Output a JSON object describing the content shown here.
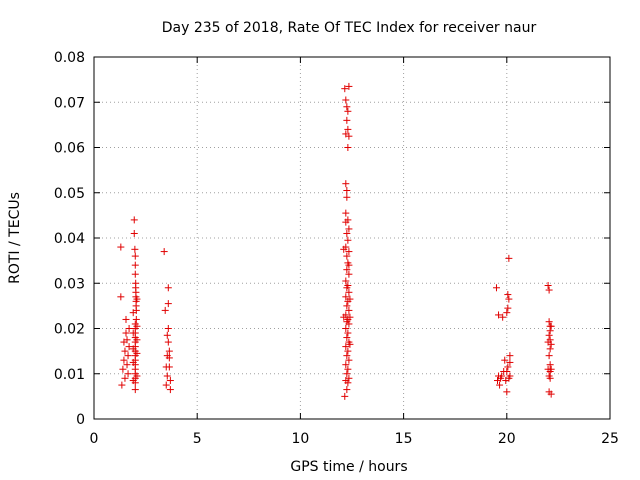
{
  "chart_data": {
    "type": "scatter",
    "title": "Day 235 of 2018, Rate Of TEC Index for receiver naur",
    "xlabel": "GPS time / hours",
    "ylabel": "ROTI / TECUs",
    "xlim": [
      0,
      25
    ],
    "ylim": [
      0,
      0.08
    ],
    "xticks": [
      "0",
      "5",
      "10",
      "15",
      "20",
      "25"
    ],
    "yticks": [
      "0",
      "0.01",
      "0.02",
      "0.03",
      "0.04",
      "0.05",
      "0.06",
      "0.07",
      "0.08"
    ],
    "grid": true,
    "marker": "plus",
    "color": "#e00000",
    "series": [
      {
        "points": [
          [
            1.3,
            0.038
          ],
          [
            1.3,
            0.027
          ],
          [
            1.35,
            0.0075
          ],
          [
            1.4,
            0.011
          ],
          [
            1.45,
            0.013
          ],
          [
            1.45,
            0.017
          ],
          [
            1.5,
            0.009
          ],
          [
            1.5,
            0.015
          ],
          [
            1.55,
            0.019
          ],
          [
            1.55,
            0.022
          ],
          [
            1.6,
            0.012
          ],
          [
            1.6,
            0.0175
          ],
          [
            1.65,
            0.01
          ],
          [
            1.65,
            0.014
          ],
          [
            1.7,
            0.016
          ],
          [
            1.7,
            0.02
          ],
          [
            1.95,
            0.044
          ],
          [
            1.95,
            0.041
          ],
          [
            1.98,
            0.0375
          ],
          [
            2.0,
            0.036
          ],
          [
            2.0,
            0.034
          ],
          [
            2.0,
            0.032
          ],
          [
            2.02,
            0.03
          ],
          [
            2.02,
            0.029
          ],
          [
            2.03,
            0.028
          ],
          [
            2.03,
            0.027
          ],
          [
            2.04,
            0.026
          ],
          [
            2.04,
            0.025
          ],
          [
            2.05,
            0.024
          ],
          [
            2.05,
            0.022
          ],
          [
            2.0,
            0.021
          ],
          [
            2.0,
            0.02
          ],
          [
            2.0,
            0.019
          ],
          [
            2.0,
            0.018
          ],
          [
            2.0,
            0.017
          ],
          [
            2.0,
            0.016
          ],
          [
            2.0,
            0.015
          ],
          [
            2.0,
            0.014
          ],
          [
            2.0,
            0.013
          ],
          [
            2.0,
            0.012
          ],
          [
            2.0,
            0.011
          ],
          [
            2.0,
            0.01
          ],
          [
            2.0,
            0.009
          ],
          [
            2.0,
            0.008
          ],
          [
            2.0,
            0.0065
          ],
          [
            1.9,
            0.0085
          ],
          [
            1.9,
            0.0125
          ],
          [
            1.9,
            0.0155
          ],
          [
            1.9,
            0.019
          ],
          [
            1.9,
            0.0235
          ],
          [
            2.08,
            0.0145
          ],
          [
            2.08,
            0.0175
          ],
          [
            2.08,
            0.0205
          ],
          [
            2.08,
            0.0265
          ],
          [
            2.08,
            0.0095
          ],
          [
            3.4,
            0.037
          ],
          [
            3.45,
            0.024
          ],
          [
            3.5,
            0.0115
          ],
          [
            3.5,
            0.0075
          ],
          [
            3.55,
            0.0095
          ],
          [
            3.55,
            0.014
          ],
          [
            3.6,
            0.029
          ],
          [
            3.6,
            0.0255
          ],
          [
            3.6,
            0.02
          ],
          [
            3.6,
            0.017
          ],
          [
            3.65,
            0.015
          ],
          [
            3.65,
            0.0135
          ],
          [
            3.65,
            0.0115
          ],
          [
            3.7,
            0.0085
          ],
          [
            3.7,
            0.0065
          ],
          [
            3.55,
            0.0185
          ],
          [
            12.15,
            0.073
          ],
          [
            12.2,
            0.0705
          ],
          [
            12.25,
            0.069
          ],
          [
            12.3,
            0.068
          ],
          [
            12.35,
            0.0735
          ],
          [
            12.25,
            0.066
          ],
          [
            12.3,
            0.064
          ],
          [
            12.35,
            0.0625
          ],
          [
            12.2,
            0.063
          ],
          [
            12.3,
            0.06
          ],
          [
            12.2,
            0.052
          ],
          [
            12.25,
            0.0505
          ],
          [
            12.25,
            0.049
          ],
          [
            12.2,
            0.0455
          ],
          [
            12.3,
            0.044
          ],
          [
            12.2,
            0.0435
          ],
          [
            12.35,
            0.042
          ],
          [
            12.25,
            0.041
          ],
          [
            12.3,
            0.0395
          ],
          [
            12.2,
            0.038
          ],
          [
            12.35,
            0.037
          ],
          [
            12.25,
            0.036
          ],
          [
            12.3,
            0.0345
          ],
          [
            12.35,
            0.034
          ],
          [
            12.25,
            0.033
          ],
          [
            12.35,
            0.032
          ],
          [
            12.2,
            0.0305
          ],
          [
            12.3,
            0.0295
          ],
          [
            12.25,
            0.029
          ],
          [
            12.35,
            0.028
          ],
          [
            12.2,
            0.027
          ],
          [
            12.3,
            0.026
          ],
          [
            12.25,
            0.025
          ],
          [
            12.35,
            0.024
          ],
          [
            12.2,
            0.023
          ],
          [
            12.3,
            0.022
          ],
          [
            12.25,
            0.0215
          ],
          [
            12.35,
            0.021
          ],
          [
            12.2,
            0.02
          ],
          [
            12.3,
            0.019
          ],
          [
            12.25,
            0.018
          ],
          [
            12.35,
            0.017
          ],
          [
            12.2,
            0.016
          ],
          [
            12.3,
            0.015
          ],
          [
            12.25,
            0.014
          ],
          [
            12.35,
            0.013
          ],
          [
            12.2,
            0.012
          ],
          [
            12.3,
            0.011
          ],
          [
            12.25,
            0.01
          ],
          [
            12.35,
            0.009
          ],
          [
            12.2,
            0.0085
          ],
          [
            12.3,
            0.008
          ],
          [
            12.25,
            0.0065
          ],
          [
            12.15,
            0.005
          ],
          [
            12.4,
            0.0225
          ],
          [
            12.4,
            0.0165
          ],
          [
            12.4,
            0.0265
          ],
          [
            12.1,
            0.0375
          ],
          [
            12.1,
            0.0225
          ],
          [
            19.5,
            0.029
          ],
          [
            19.55,
            0.0085
          ],
          [
            19.6,
            0.023
          ],
          [
            19.65,
            0.0075
          ],
          [
            19.7,
            0.009
          ],
          [
            19.75,
            0.0095
          ],
          [
            19.8,
            0.0225
          ],
          [
            19.85,
            0.0105
          ],
          [
            19.9,
            0.013
          ],
          [
            19.95,
            0.0085
          ],
          [
            20.0,
            0.0235
          ],
          [
            20.0,
            0.0105
          ],
          [
            20.0,
            0.006
          ],
          [
            20.05,
            0.0275
          ],
          [
            20.05,
            0.0245
          ],
          [
            20.05,
            0.0115
          ],
          [
            20.1,
            0.0355
          ],
          [
            20.1,
            0.0265
          ],
          [
            20.1,
            0.009
          ],
          [
            20.15,
            0.0125
          ],
          [
            20.15,
            0.0095
          ],
          [
            20.15,
            0.014
          ],
          [
            19.6,
            0.0095
          ],
          [
            22.0,
            0.0295
          ],
          [
            22.05,
            0.0285
          ],
          [
            22.05,
            0.0215
          ],
          [
            22.1,
            0.0205
          ],
          [
            22.1,
            0.0195
          ],
          [
            22.05,
            0.0185
          ],
          [
            22.1,
            0.0175
          ],
          [
            22.15,
            0.0165
          ],
          [
            22.1,
            0.0155
          ],
          [
            22.05,
            0.014
          ],
          [
            22.1,
            0.012
          ],
          [
            22.15,
            0.011
          ],
          [
            22.1,
            0.0105
          ],
          [
            22.05,
            0.0095
          ],
          [
            22.1,
            0.009
          ],
          [
            22.05,
            0.006
          ],
          [
            22.15,
            0.0055
          ],
          [
            22.15,
            0.0205
          ],
          [
            22.0,
            0.017
          ],
          [
            22.0,
            0.011
          ]
        ]
      }
    ]
  }
}
